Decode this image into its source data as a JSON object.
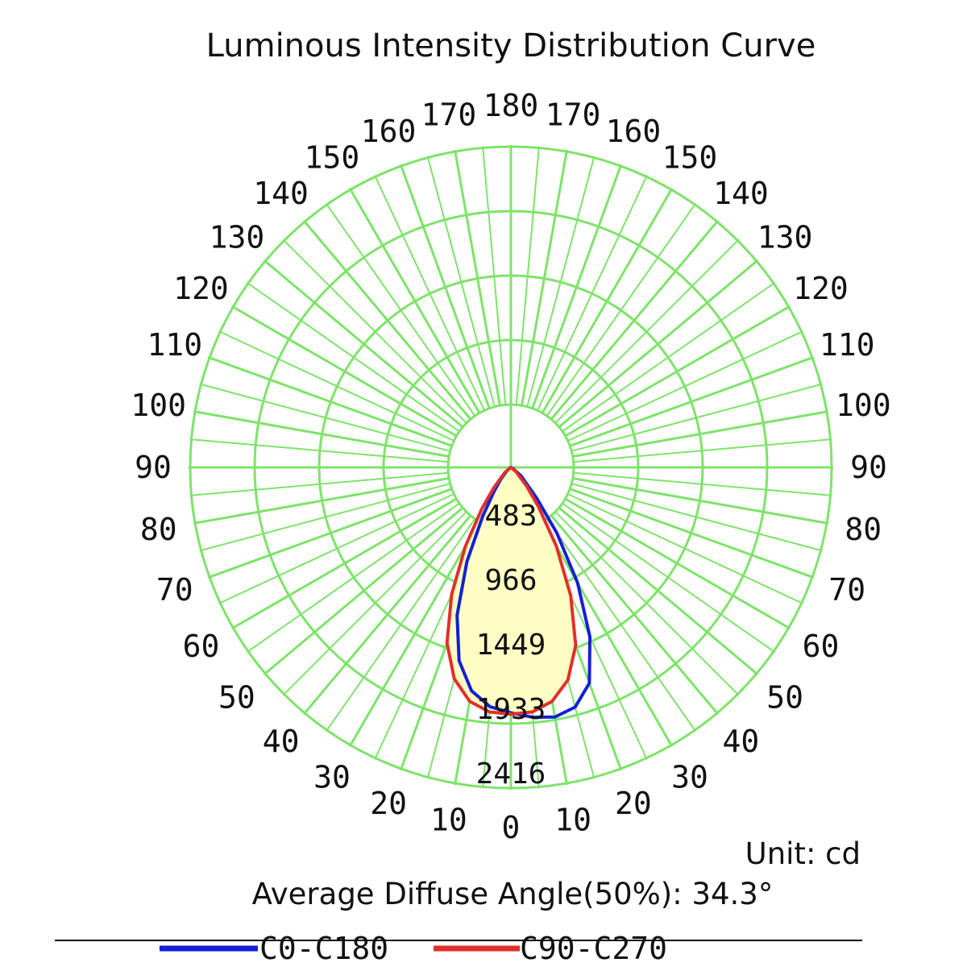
{
  "colors": {
    "grid": "#7ee36a",
    "fill": "#fdfdc4",
    "c0": "#1320d6",
    "c90": "#e0302a",
    "text": "#111111"
  },
  "chart_data": {
    "type": "polar",
    "title": "Luminous Intensity Distribution Curve",
    "unit_label": "Unit: cd",
    "note": "Average Diffuse Angle(50%): 34.3°",
    "radial_ticks": [
      483,
      966,
      1449,
      1933,
      2416
    ],
    "rmax": 2416,
    "angle_labels_left": [
      {
        "angle": 10,
        "text": "10"
      },
      {
        "angle": 20,
        "text": "20"
      },
      {
        "angle": 30,
        "text": "30"
      },
      {
        "angle": 40,
        "text": "40"
      },
      {
        "angle": 50,
        "text": "50"
      },
      {
        "angle": 60,
        "text": "60"
      },
      {
        "angle": 70,
        "text": "70"
      },
      {
        "angle": 80,
        "text": "80"
      },
      {
        "angle": 90,
        "text": "90"
      },
      {
        "angle": 100,
        "text": "100"
      },
      {
        "angle": 110,
        "text": "110"
      },
      {
        "angle": 120,
        "text": "120"
      },
      {
        "angle": 130,
        "text": "130"
      },
      {
        "angle": 140,
        "text": "140"
      },
      {
        "angle": 150,
        "text": "150"
      },
      {
        "angle": 160,
        "text": "160"
      },
      {
        "angle": 170,
        "text": "170"
      }
    ],
    "angle_labels_right": [
      {
        "angle": 10,
        "text": "10"
      },
      {
        "angle": 20,
        "text": "20"
      },
      {
        "angle": 30,
        "text": "30"
      },
      {
        "angle": 40,
        "text": "40"
      },
      {
        "angle": 50,
        "text": "50"
      },
      {
        "angle": 60,
        "text": "60"
      },
      {
        "angle": 70,
        "text": "70"
      },
      {
        "angle": 80,
        "text": "80"
      },
      {
        "angle": 90,
        "text": "90"
      },
      {
        "angle": 100,
        "text": "100"
      },
      {
        "angle": 110,
        "text": "110"
      },
      {
        "angle": 120,
        "text": "120"
      },
      {
        "angle": 130,
        "text": "130"
      },
      {
        "angle": 140,
        "text": "140"
      },
      {
        "angle": 150,
        "text": "150"
      },
      {
        "angle": 160,
        "text": "160"
      },
      {
        "angle": 170,
        "text": "170"
      }
    ],
    "angle_label_top": "180",
    "angle_label_bottom": "0",
    "angles": [
      -90,
      -80,
      -70,
      -60,
      -50,
      -40,
      -35,
      -30,
      -25,
      -20,
      -15,
      -10,
      -5,
      0,
      5,
      10,
      15,
      20,
      25,
      30,
      35,
      40,
      50,
      60,
      70,
      80,
      90
    ],
    "series": [
      {
        "name": "C0-C180",
        "values": [
          0,
          0,
          0,
          0,
          40,
          120,
          220,
          420,
          780,
          1180,
          1500,
          1700,
          1800,
          1840,
          1880,
          1900,
          1860,
          1720,
          1400,
          1000,
          600,
          300,
          100,
          20,
          0,
          0,
          0
        ]
      },
      {
        "name": "C90-C270",
        "values": [
          0,
          0,
          0,
          0,
          60,
          200,
          380,
          680,
          1050,
          1400,
          1640,
          1780,
          1840,
          1850,
          1840,
          1780,
          1650,
          1420,
          1060,
          680,
          360,
          180,
          50,
          0,
          0,
          0,
          0
        ]
      }
    ]
  }
}
